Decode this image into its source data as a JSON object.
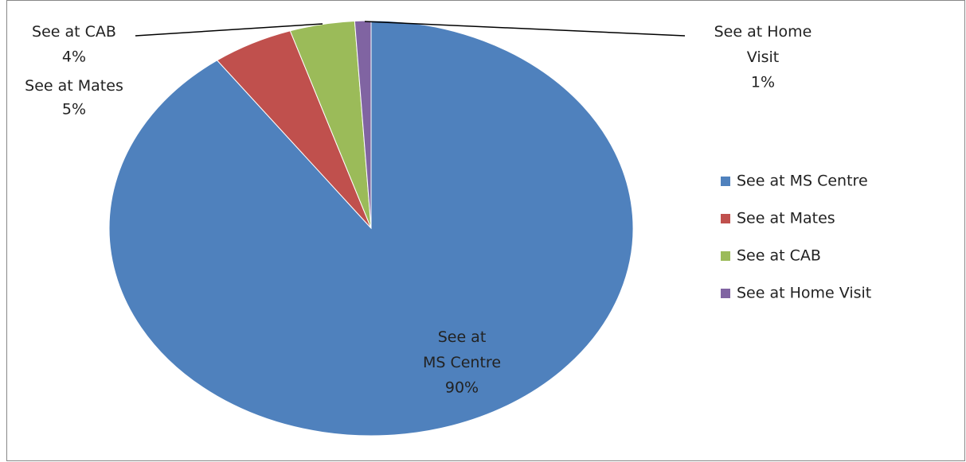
{
  "chart_data": {
    "type": "pie",
    "categories": [
      "See at MS Centre",
      "See at Mates",
      "See at CAB",
      "See at Home Visit"
    ],
    "values": [
      90,
      5,
      4,
      1
    ],
    "value_labels": [
      "90%",
      "5%",
      "4%",
      "1%"
    ],
    "colors": [
      "#4f81bd",
      "#c0504d",
      "#9bbb59",
      "#8064a2"
    ],
    "legend": "right"
  }
}
